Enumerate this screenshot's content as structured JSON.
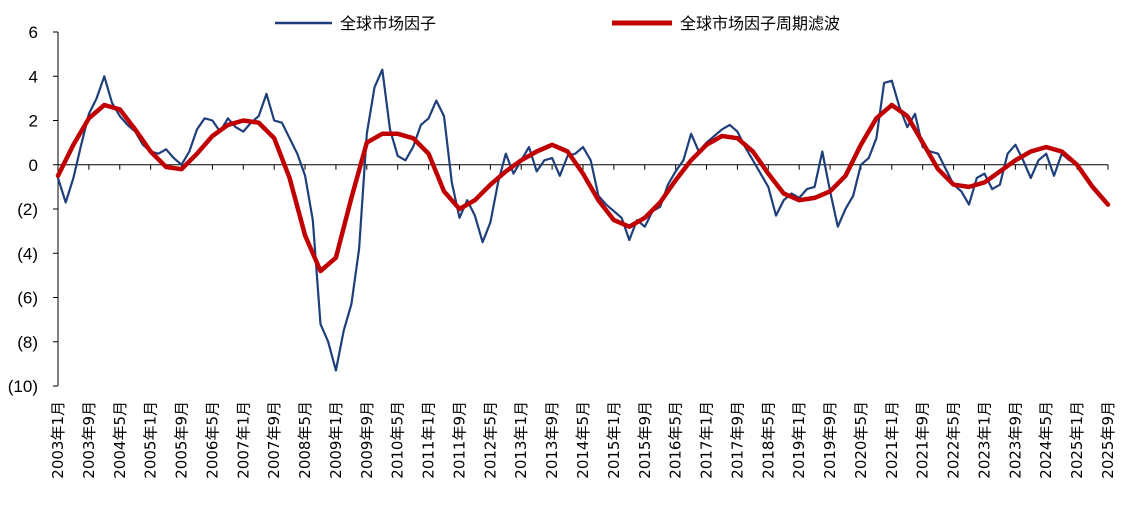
{
  "chart_data": {
    "type": "line",
    "title": "",
    "xlabel": "",
    "ylabel": "",
    "ylim": [
      -10,
      6
    ],
    "yticks": [
      6,
      4,
      2,
      0,
      -2,
      -4,
      -6,
      -8,
      -10
    ],
    "ytick_labels": [
      "6",
      "4",
      "2",
      "0",
      "(2)",
      "(4)",
      "(6)",
      "(8)",
      "(10)"
    ],
    "x_start": "2003-01",
    "x_end": "2025-09",
    "xtick_labels": [
      "2003年1月",
      "2003年9月",
      "2004年5月",
      "2005年1月",
      "2005年9月",
      "2006年5月",
      "2007年1月",
      "2007年9月",
      "2008年5月",
      "2009年1月",
      "2009年9月",
      "2010年5月",
      "2011年1月",
      "2011年9月",
      "2012年5月",
      "2013年1月",
      "2013年9月",
      "2014年5月",
      "2015年1月",
      "2015年9月",
      "2016年5月",
      "2017年1月",
      "2017年9月",
      "2018年5月",
      "2019年1月",
      "2019年9月",
      "2020年5月",
      "2021年1月",
      "2021年9月",
      "2022年5月",
      "2023年1月",
      "2023年9月",
      "2024年5月",
      "2025年1月",
      "2025年9月"
    ],
    "legend_position": "top",
    "colors": {
      "raw": "#1f3f7a",
      "filtered": "#c00000"
    },
    "series": [
      {
        "name": "全球市场因子",
        "x": [
          "2003-01",
          "2003-03",
          "2003-05",
          "2003-07",
          "2003-09",
          "2003-11",
          "2004-01",
          "2004-03",
          "2004-05",
          "2004-07",
          "2004-09",
          "2004-11",
          "2005-01",
          "2005-03",
          "2005-05",
          "2005-07",
          "2005-09",
          "2005-11",
          "2006-01",
          "2006-03",
          "2006-05",
          "2006-07",
          "2006-09",
          "2006-11",
          "2007-01",
          "2007-03",
          "2007-05",
          "2007-07",
          "2007-09",
          "2007-11",
          "2008-01",
          "2008-03",
          "2008-05",
          "2008-07",
          "2008-09",
          "2008-11",
          "2009-01",
          "2009-03",
          "2009-05",
          "2009-07",
          "2009-09",
          "2009-11",
          "2010-01",
          "2010-03",
          "2010-05",
          "2010-07",
          "2010-09",
          "2010-11",
          "2011-01",
          "2011-03",
          "2011-05",
          "2011-07",
          "2011-09",
          "2011-11",
          "2012-01",
          "2012-03",
          "2012-05",
          "2012-07",
          "2012-09",
          "2012-11",
          "2013-01",
          "2013-03",
          "2013-05",
          "2013-07",
          "2013-09",
          "2013-11",
          "2014-01",
          "2014-03",
          "2014-05",
          "2014-07",
          "2014-09",
          "2014-11",
          "2015-01",
          "2015-03",
          "2015-05",
          "2015-07",
          "2015-09",
          "2015-11",
          "2016-01",
          "2016-03",
          "2016-05",
          "2016-07",
          "2016-09",
          "2016-11",
          "2017-01",
          "2017-03",
          "2017-05",
          "2017-07",
          "2017-09",
          "2017-11",
          "2018-01",
          "2018-03",
          "2018-05",
          "2018-07",
          "2018-09",
          "2018-11",
          "2019-01",
          "2019-03",
          "2019-05",
          "2019-07",
          "2019-09",
          "2019-11",
          "2020-01",
          "2020-03",
          "2020-05",
          "2020-07",
          "2020-09",
          "2020-11",
          "2021-01",
          "2021-03",
          "2021-05",
          "2021-07",
          "2021-09",
          "2021-11",
          "2022-01",
          "2022-03",
          "2022-05",
          "2022-07",
          "2022-09",
          "2022-11",
          "2023-01",
          "2023-03",
          "2023-05",
          "2023-07",
          "2023-09",
          "2023-11",
          "2024-01",
          "2024-03",
          "2024-05",
          "2024-07",
          "2024-09",
          "2024-11"
        ],
        "values": [
          -0.6,
          -1.7,
          -0.6,
          0.9,
          2.3,
          3.0,
          4.0,
          2.8,
          2.2,
          1.8,
          1.5,
          0.9,
          0.6,
          0.5,
          0.7,
          0.3,
          0.0,
          0.6,
          1.6,
          2.1,
          2.0,
          1.5,
          2.1,
          1.7,
          1.5,
          1.9,
          2.2,
          3.2,
          2.0,
          1.9,
          1.2,
          0.5,
          -0.5,
          -2.5,
          -7.2,
          -8.0,
          -9.3,
          -7.5,
          -6.3,
          -3.8,
          1.4,
          3.5,
          4.3,
          1.6,
          0.4,
          0.2,
          0.8,
          1.8,
          2.1,
          2.9,
          2.2,
          -0.8,
          -2.4,
          -1.6,
          -2.3,
          -3.5,
          -2.6,
          -0.8,
          0.5,
          -0.4,
          0.2,
          0.8,
          -0.3,
          0.2,
          0.3,
          -0.5,
          0.4,
          0.5,
          0.8,
          0.2,
          -1.4,
          -1.8,
          -2.1,
          -2.4,
          -3.4,
          -2.5,
          -2.8,
          -2.1,
          -1.9,
          -0.9,
          -0.3,
          0.2,
          1.4,
          0.6,
          1.0,
          1.3,
          1.6,
          1.8,
          1.5,
          0.8,
          0.2,
          -0.4,
          -1.0,
          -2.3,
          -1.6,
          -1.3,
          -1.5,
          -1.1,
          -1.0,
          0.6,
          -1.2,
          -2.8,
          -2.0,
          -1.4,
          0.0,
          0.3,
          1.2,
          3.7,
          3.8,
          2.6,
          1.7,
          2.3,
          0.8,
          0.6,
          0.5,
          -0.2,
          -0.9,
          -1.2,
          -1.8,
          -0.6,
          -0.4,
          -1.1,
          -0.9,
          0.5,
          0.9,
          0.2,
          -0.6,
          0.2,
          0.5,
          -0.5,
          0.5,
          0.2
        ]
      },
      {
        "name": "全球市场因子周期滤波",
        "x": [
          "2003-01",
          "2003-05",
          "2003-09",
          "2004-01",
          "2004-05",
          "2004-09",
          "2005-01",
          "2005-05",
          "2005-09",
          "2006-01",
          "2006-05",
          "2006-09",
          "2007-01",
          "2007-05",
          "2007-09",
          "2008-01",
          "2008-05",
          "2008-09",
          "2009-01",
          "2009-05",
          "2009-09",
          "2010-01",
          "2010-05",
          "2010-09",
          "2011-01",
          "2011-05",
          "2011-09",
          "2012-01",
          "2012-05",
          "2012-09",
          "2013-01",
          "2013-05",
          "2013-09",
          "2014-01",
          "2014-05",
          "2014-09",
          "2015-01",
          "2015-05",
          "2015-09",
          "2016-01",
          "2016-05",
          "2016-09",
          "2017-01",
          "2017-05",
          "2017-09",
          "2018-01",
          "2018-05",
          "2018-09",
          "2019-01",
          "2019-05",
          "2019-09",
          "2020-01",
          "2020-05",
          "2020-09",
          "2021-01",
          "2021-05",
          "2021-09",
          "2022-01",
          "2022-05",
          "2022-09",
          "2023-01",
          "2023-05",
          "2023-09",
          "2024-01",
          "2024-05",
          "2024-09",
          "2025-01",
          "2025-05",
          "2025-09"
        ],
        "values": [
          -0.5,
          0.9,
          2.1,
          2.7,
          2.5,
          1.6,
          0.6,
          -0.1,
          -0.2,
          0.5,
          1.3,
          1.8,
          2.0,
          1.9,
          1.2,
          -0.6,
          -3.2,
          -4.8,
          -4.2,
          -1.5,
          1.0,
          1.4,
          1.4,
          1.2,
          0.5,
          -1.2,
          -2.0,
          -1.6,
          -0.9,
          -0.3,
          0.2,
          0.6,
          0.9,
          0.6,
          -0.4,
          -1.6,
          -2.5,
          -2.8,
          -2.4,
          -1.7,
          -0.7,
          0.2,
          0.9,
          1.3,
          1.2,
          0.6,
          -0.4,
          -1.3,
          -1.6,
          -1.5,
          -1.2,
          -0.5,
          0.9,
          2.1,
          2.7,
          2.2,
          1.0,
          -0.2,
          -0.9,
          -1.0,
          -0.8,
          -0.3,
          0.2,
          0.6,
          0.8,
          0.6,
          0.0,
          -1.0,
          -1.8
        ]
      }
    ]
  }
}
